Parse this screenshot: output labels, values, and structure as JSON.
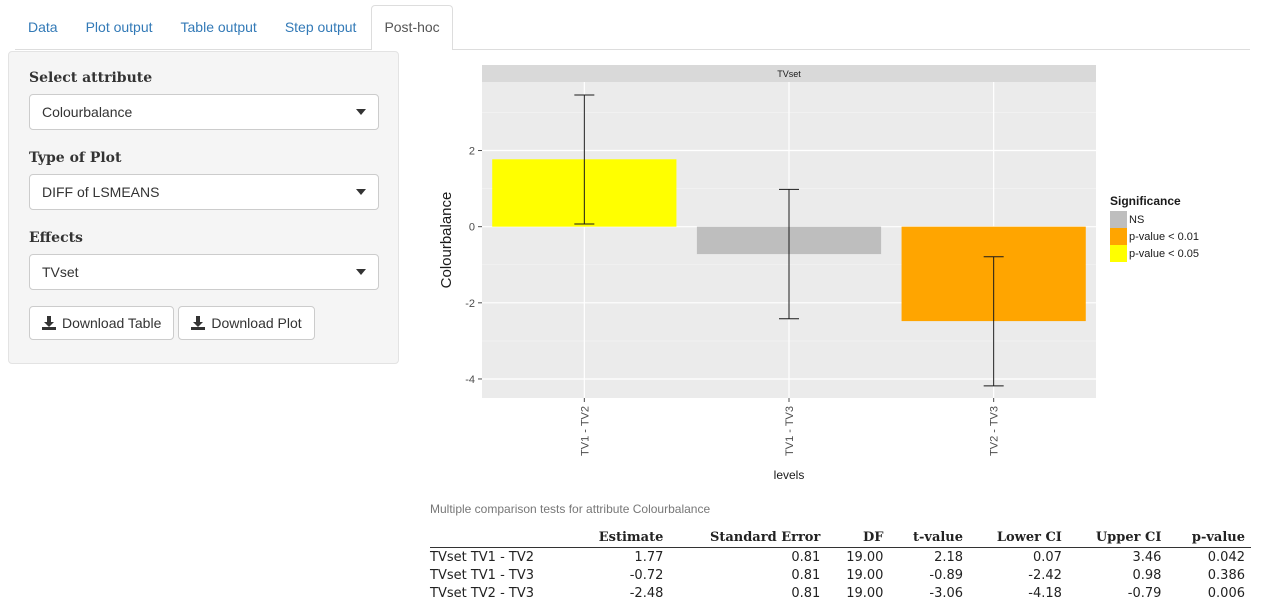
{
  "tabs": [
    {
      "label": "Data"
    },
    {
      "label": "Plot output"
    },
    {
      "label": "Table output"
    },
    {
      "label": "Step output"
    },
    {
      "label": "Post-hoc",
      "active": true
    }
  ],
  "sidebar": {
    "attribute_label": "Select attribute",
    "attribute_value": "Colourbalance",
    "plot_type_label": "Type of Plot",
    "plot_type_value": "DIFF of LSMEANS",
    "effects_label": "Effects",
    "effects_value": "TVset",
    "download_table_label": "Download Table",
    "download_plot_label": "Download Plot",
    "download_icon": "download-icon"
  },
  "chart_data": {
    "type": "bar",
    "facet_title": "TVset",
    "categories": [
      "TV1 - TV2",
      "TV1 - TV3",
      "TV2 - TV3"
    ],
    "values": [
      1.77,
      -0.72,
      -2.48
    ],
    "ci_lower": [
      0.07,
      -2.42,
      -4.18
    ],
    "ci_upper": [
      3.46,
      0.98,
      -0.79
    ],
    "significance": [
      "p-value < 0.05",
      "NS",
      "p-value < 0.01"
    ],
    "xlabel": "levels",
    "ylabel": "Colourbalance",
    "yticks": [
      2,
      0,
      -2,
      -4
    ],
    "ylim": [
      -4.5,
      3.8
    ],
    "legend": {
      "title": "Significance",
      "position": "right",
      "entries": [
        {
          "label": "NS",
          "color": "#bebebe"
        },
        {
          "label": "p-value < 0.01",
          "color": "#ffa500"
        },
        {
          "label": "p-value < 0.05",
          "color": "#ffff00"
        }
      ]
    },
    "grid": true
  },
  "table": {
    "caption": "Multiple comparison tests for attribute Colourbalance",
    "headers": [
      "",
      "Estimate",
      "Standard Error",
      "DF",
      "t-value",
      "Lower CI",
      "Upper CI",
      "p-value"
    ],
    "rows": [
      [
        "TVset TV1 - TV2",
        "1.77",
        "0.81",
        "19.00",
        "2.18",
        "0.07",
        "3.46",
        "0.042"
      ],
      [
        "TVset TV1 - TV3",
        "-0.72",
        "0.81",
        "19.00",
        "-0.89",
        "-2.42",
        "0.98",
        "0.386"
      ],
      [
        "TVset TV2 - TV3",
        "-2.48",
        "0.81",
        "19.00",
        "-3.06",
        "-4.18",
        "-0.79",
        "0.006"
      ]
    ]
  }
}
